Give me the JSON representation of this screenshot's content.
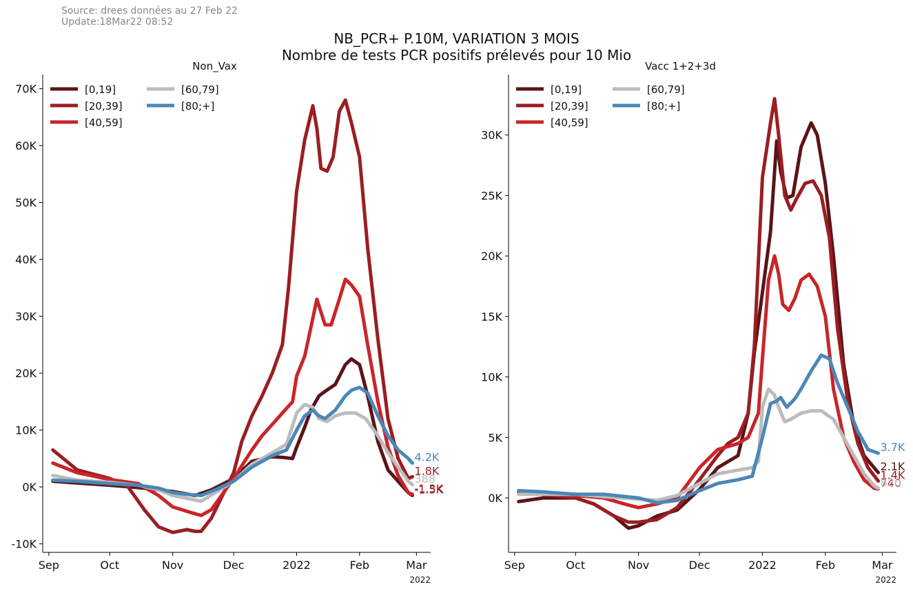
{
  "header": {
    "source_line": "Source: drees données au 27 Feb 22",
    "update_line": "Update:18Mar22 08:52",
    "title_line1": "NB_PCR+ P.10M, VARIATION 3 MOIS",
    "title_line2": "Nombre de tests PCR positifs prélevés pour 10 Mio"
  },
  "chart_data": [
    {
      "type": "line",
      "title": "Non_Vax",
      "xlabel": "",
      "ylabel": "",
      "x_ticks": [
        "Sep",
        "Oct",
        "Nov",
        "Dec",
        "2022",
        "Feb",
        "Mar"
      ],
      "x_tick_dates": [
        "2021-09-01",
        "2021-10-01",
        "2021-11-01",
        "2021-12-01",
        "2022-01-01",
        "2022-02-01",
        "2022-03-01"
      ],
      "x_offset_label": "2022",
      "xlim": [
        "2021-08-29",
        "2022-03-08"
      ],
      "y_ticks": [
        -10000,
        0,
        10000,
        20000,
        30000,
        40000,
        50000,
        60000,
        70000
      ],
      "y_tick_labels": [
        "-10K",
        "0K",
        "10K",
        "20K",
        "30K",
        "40K",
        "50K",
        "60K",
        "70K"
      ],
      "ylim": [
        -11500,
        72500
      ],
      "legend": "top-left, 2 columns",
      "series": [
        {
          "name": "[0,19]",
          "color": "#5a1418",
          "dates": [
            "2021-09-03",
            "2021-09-15",
            "2021-10-01",
            "2021-10-15",
            "2021-11-01",
            "2021-11-12",
            "2021-11-20",
            "2021-12-01",
            "2021-12-10",
            "2021-12-20",
            "2021-12-25",
            "2021-12-30",
            "2022-01-01",
            "2022-01-05",
            "2022-01-08",
            "2022-01-12",
            "2022-01-15",
            "2022-01-20",
            "2022-01-25",
            "2022-01-28",
            "2022-02-01",
            "2022-02-05",
            "2022-02-10",
            "2022-02-15",
            "2022-02-20",
            "2022-02-25",
            "2022-02-27"
          ],
          "values": [
            1000,
            700,
            300,
            -100,
            -800,
            -1500,
            -500,
            1500,
            4500,
            5300,
            5200,
            5000,
            7000,
            10500,
            13500,
            16000,
            16800,
            18000,
            21500,
            22500,
            21500,
            16000,
            8000,
            3000,
            1000,
            -1000,
            -1500
          ],
          "end_label": "-1.5K"
        },
        {
          "name": "[20,39]",
          "color": "#9a1e22",
          "dates": [
            "2021-09-03",
            "2021-09-15",
            "2021-10-01",
            "2021-10-10",
            "2021-10-18",
            "2021-10-25",
            "2021-11-01",
            "2021-11-08",
            "2021-11-12",
            "2021-11-15",
            "2021-11-20",
            "2021-12-01",
            "2021-12-05",
            "2021-12-10",
            "2021-12-15",
            "2021-12-20",
            "2021-12-25",
            "2021-12-28",
            "2022-01-01",
            "2022-01-05",
            "2022-01-09",
            "2022-01-11",
            "2022-01-13",
            "2022-01-16",
            "2022-01-19",
            "2022-01-22",
            "2022-01-25",
            "2022-01-28",
            "2022-02-01",
            "2022-02-05",
            "2022-02-10",
            "2022-02-15",
            "2022-02-20",
            "2022-02-25",
            "2022-02-27"
          ],
          "values": [
            6500,
            3000,
            1500,
            0,
            -4000,
            -7000,
            -8000,
            -7500,
            -7800,
            -7800,
            -5500,
            2500,
            8000,
            12500,
            16000,
            20000,
            25000,
            35000,
            52000,
            61000,
            67000,
            63000,
            56000,
            55500,
            58000,
            66000,
            68000,
            64000,
            58000,
            42000,
            26000,
            12000,
            5000,
            1500,
            1800
          ],
          "end_label": "1.8K"
        },
        {
          "name": "[40,59]",
          "color": "#c8262a",
          "dates": [
            "2021-09-03",
            "2021-09-15",
            "2021-10-01",
            "2021-10-15",
            "2021-10-25",
            "2021-11-01",
            "2021-11-10",
            "2021-11-15",
            "2021-11-20",
            "2021-12-01",
            "2021-12-10",
            "2021-12-15",
            "2021-12-20",
            "2021-12-25",
            "2021-12-30",
            "2022-01-01",
            "2022-01-05",
            "2022-01-08",
            "2022-01-11",
            "2022-01-15",
            "2022-01-18",
            "2022-01-22",
            "2022-01-25",
            "2022-01-28",
            "2022-02-01",
            "2022-02-05",
            "2022-02-10",
            "2022-02-15",
            "2022-02-20",
            "2022-02-25",
            "2022-02-27"
          ],
          "values": [
            4200,
            2500,
            1300,
            600,
            -1500,
            -3500,
            -4500,
            -5000,
            -4000,
            1500,
            6500,
            9000,
            11000,
            13000,
            15000,
            19500,
            23000,
            28000,
            33000,
            28500,
            28500,
            33000,
            36500,
            35500,
            33500,
            25000,
            15000,
            7000,
            2000,
            -1000,
            -1300
          ],
          "end_label": "-1.3K"
        },
        {
          "name": "[60,79]",
          "color": "#bcbcbc",
          "dates": [
            "2021-09-03",
            "2021-09-15",
            "2021-10-01",
            "2021-10-15",
            "2021-10-25",
            "2021-11-01",
            "2021-11-08",
            "2021-11-15",
            "2021-11-22",
            "2021-12-01",
            "2021-12-10",
            "2021-12-20",
            "2021-12-27",
            "2022-01-01",
            "2022-01-05",
            "2022-01-09",
            "2022-01-12",
            "2022-01-16",
            "2022-01-20",
            "2022-01-25",
            "2022-01-30",
            "2022-02-04",
            "2022-02-10",
            "2022-02-15",
            "2022-02-20",
            "2022-02-25",
            "2022-02-27"
          ],
          "values": [
            2000,
            1200,
            800,
            300,
            -500,
            -1500,
            -2000,
            -2500,
            -1000,
            1000,
            4000,
            6000,
            7500,
            13000,
            14500,
            14000,
            12000,
            11500,
            12500,
            13000,
            13000,
            12000,
            9000,
            6000,
            3500,
            1000,
            400
          ],
          "end_label": "388"
        },
        {
          "name": "[80;+]",
          "color": "#4a87b8",
          "dates": [
            "2021-09-03",
            "2021-09-15",
            "2021-10-01",
            "2021-10-15",
            "2021-10-25",
            "2021-11-01",
            "2021-11-08",
            "2021-11-15",
            "2021-11-22",
            "2021-12-01",
            "2021-12-10",
            "2021-12-20",
            "2021-12-27",
            "2022-01-01",
            "2022-01-05",
            "2022-01-09",
            "2022-01-12",
            "2022-01-15",
            "2022-01-20",
            "2022-01-25",
            "2022-01-28",
            "2022-02-01",
            "2022-02-05",
            "2022-02-10",
            "2022-02-15",
            "2022-02-20",
            "2022-02-25",
            "2022-02-27"
          ],
          "values": [
            1200,
            1000,
            600,
            300,
            -200,
            -1000,
            -1300,
            -1500,
            -500,
            1000,
            3500,
            5500,
            6500,
            10000,
            12500,
            13500,
            12500,
            12000,
            13500,
            16000,
            17000,
            17500,
            16500,
            12500,
            9000,
            6500,
            5000,
            4200
          ],
          "end_label": "4.2K"
        }
      ]
    },
    {
      "type": "line",
      "title": "Vacc 1+2+3d",
      "xlabel": "",
      "ylabel": "",
      "x_ticks": [
        "Sep",
        "Oct",
        "Nov",
        "Dec",
        "2022",
        "Feb",
        "Mar"
      ],
      "x_tick_dates": [
        "2021-09-01",
        "2021-10-01",
        "2021-11-01",
        "2021-12-01",
        "2022-01-01",
        "2022-02-01",
        "2022-03-01"
      ],
      "x_offset_label": "2022",
      "xlim": [
        "2021-08-29",
        "2022-03-08"
      ],
      "y_ticks": [
        0,
        5000,
        10000,
        15000,
        20000,
        25000,
        30000
      ],
      "y_tick_labels": [
        "0K",
        "5K",
        "10K",
        "15K",
        "20K",
        "25K",
        "30K"
      ],
      "ylim": [
        -4500,
        35000
      ],
      "legend": "top-left, 2 columns",
      "series": [
        {
          "name": "[0,19]",
          "color": "#5a1418",
          "dates": [
            "2021-09-03",
            "2021-09-15",
            "2021-10-01",
            "2021-10-10",
            "2021-10-20",
            "2021-10-27",
            "2021-11-01",
            "2021-11-10",
            "2021-11-20",
            "2021-12-01",
            "2021-12-10",
            "2021-12-20",
            "2021-12-25",
            "2021-12-28",
            "2022-01-01",
            "2022-01-05",
            "2022-01-08",
            "2022-01-10",
            "2022-01-13",
            "2022-01-16",
            "2022-01-20",
            "2022-01-25",
            "2022-01-28",
            "2022-02-01",
            "2022-02-05",
            "2022-02-10",
            "2022-02-15",
            "2022-02-20",
            "2022-02-25",
            "2022-02-27"
          ],
          "values": [
            -300,
            0,
            0,
            -500,
            -1500,
            -2500,
            -2300,
            -1500,
            -1000,
            700,
            2500,
            3500,
            7000,
            12000,
            17000,
            22000,
            29500,
            27000,
            24800,
            25000,
            29000,
            31000,
            30000,
            26000,
            20000,
            11000,
            6000,
            3500,
            2500,
            2100
          ],
          "end_label": "2.1K"
        },
        {
          "name": "[20,39]",
          "color": "#9a1e22",
          "dates": [
            "2021-09-03",
            "2021-09-15",
            "2021-10-01",
            "2021-10-10",
            "2021-10-20",
            "2021-10-27",
            "2021-11-01",
            "2021-11-10",
            "2021-11-20",
            "2021-12-01",
            "2021-12-10",
            "2021-12-15",
            "2021-12-20",
            "2021-12-25",
            "2021-12-28",
            "2022-01-01",
            "2022-01-05",
            "2022-01-07",
            "2022-01-09",
            "2022-01-12",
            "2022-01-15",
            "2022-01-18",
            "2022-01-22",
            "2022-01-26",
            "2022-01-30",
            "2022-02-03",
            "2022-02-07",
            "2022-02-12",
            "2022-02-17",
            "2022-02-22",
            "2022-02-27"
          ],
          "values": [
            500,
            300,
            0,
            -500,
            -1500,
            -2000,
            -2000,
            -1800,
            -800,
            1500,
            3500,
            4500,
            5000,
            7000,
            12500,
            26500,
            31000,
            33000,
            30000,
            25000,
            23800,
            24800,
            26000,
            26200,
            25000,
            21500,
            14000,
            8000,
            4500,
            2500,
            1400
          ],
          "end_label": "1.4K"
        },
        {
          "name": "[40,59]",
          "color": "#c8262a",
          "dates": [
            "2021-09-03",
            "2021-09-15",
            "2021-10-01",
            "2021-10-15",
            "2021-10-25",
            "2021-11-01",
            "2021-11-10",
            "2021-11-20",
            "2021-12-01",
            "2021-12-10",
            "2021-12-20",
            "2021-12-25",
            "2021-12-30",
            "2022-01-01",
            "2022-01-04",
            "2022-01-07",
            "2022-01-09",
            "2022-01-11",
            "2022-01-14",
            "2022-01-17",
            "2022-01-20",
            "2022-01-24",
            "2022-01-28",
            "2022-02-01",
            "2022-02-05",
            "2022-02-10",
            "2022-02-15",
            "2022-02-20",
            "2022-02-25",
            "2022-02-27"
          ],
          "values": [
            500,
            300,
            200,
            0,
            -500,
            -800,
            -500,
            0,
            2500,
            4000,
            4500,
            5000,
            7000,
            11500,
            18000,
            20000,
            18500,
            16000,
            15500,
            16500,
            18000,
            18500,
            17500,
            15000,
            9000,
            5000,
            3000,
            1500,
            800,
            740
          ],
          "end_label": "740"
        },
        {
          "name": "[60,79]",
          "color": "#bcbcbc",
          "dates": [
            "2021-09-03",
            "2021-09-15",
            "2021-10-01",
            "2021-10-15",
            "2021-11-01",
            "2021-11-10",
            "2021-11-20",
            "2021-12-01",
            "2021-12-10",
            "2021-12-20",
            "2021-12-27",
            "2021-12-30",
            "2022-01-01",
            "2022-01-04",
            "2022-01-07",
            "2022-01-09",
            "2022-01-12",
            "2022-01-15",
            "2022-01-20",
            "2022-01-25",
            "2022-01-30",
            "2022-02-05",
            "2022-02-10",
            "2022-02-15",
            "2022-02-20",
            "2022-02-25",
            "2022-02-27"
          ],
          "values": [
            300,
            300,
            300,
            100,
            -100,
            -200,
            200,
            1200,
            2000,
            2300,
            2500,
            3000,
            7500,
            9000,
            8500,
            7500,
            6300,
            6500,
            7000,
            7200,
            7200,
            6500,
            5000,
            3500,
            2000,
            1000,
            800
          ],
          "end_label": "820"
        },
        {
          "name": "[80;+]",
          "color": "#4a87b8",
          "dates": [
            "2021-09-03",
            "2021-09-15",
            "2021-10-01",
            "2021-10-15",
            "2021-11-01",
            "2021-11-10",
            "2021-11-20",
            "2021-12-01",
            "2021-12-10",
            "2021-12-20",
            "2021-12-27",
            "2022-01-01",
            "2022-01-05",
            "2022-01-08",
            "2022-01-10",
            "2022-01-13",
            "2022-01-17",
            "2022-01-20",
            "2022-01-25",
            "2022-01-30",
            "2022-02-03",
            "2022-02-07",
            "2022-02-12",
            "2022-02-17",
            "2022-02-22",
            "2022-02-27"
          ],
          "values": [
            600,
            500,
            300,
            300,
            0,
            -400,
            -200,
            600,
            1200,
            1500,
            1800,
            5000,
            7800,
            8000,
            8300,
            7500,
            8200,
            9000,
            10500,
            11800,
            11500,
            9500,
            7500,
            5500,
            4000,
            3700
          ],
          "end_label": "3.7K"
        }
      ]
    }
  ]
}
